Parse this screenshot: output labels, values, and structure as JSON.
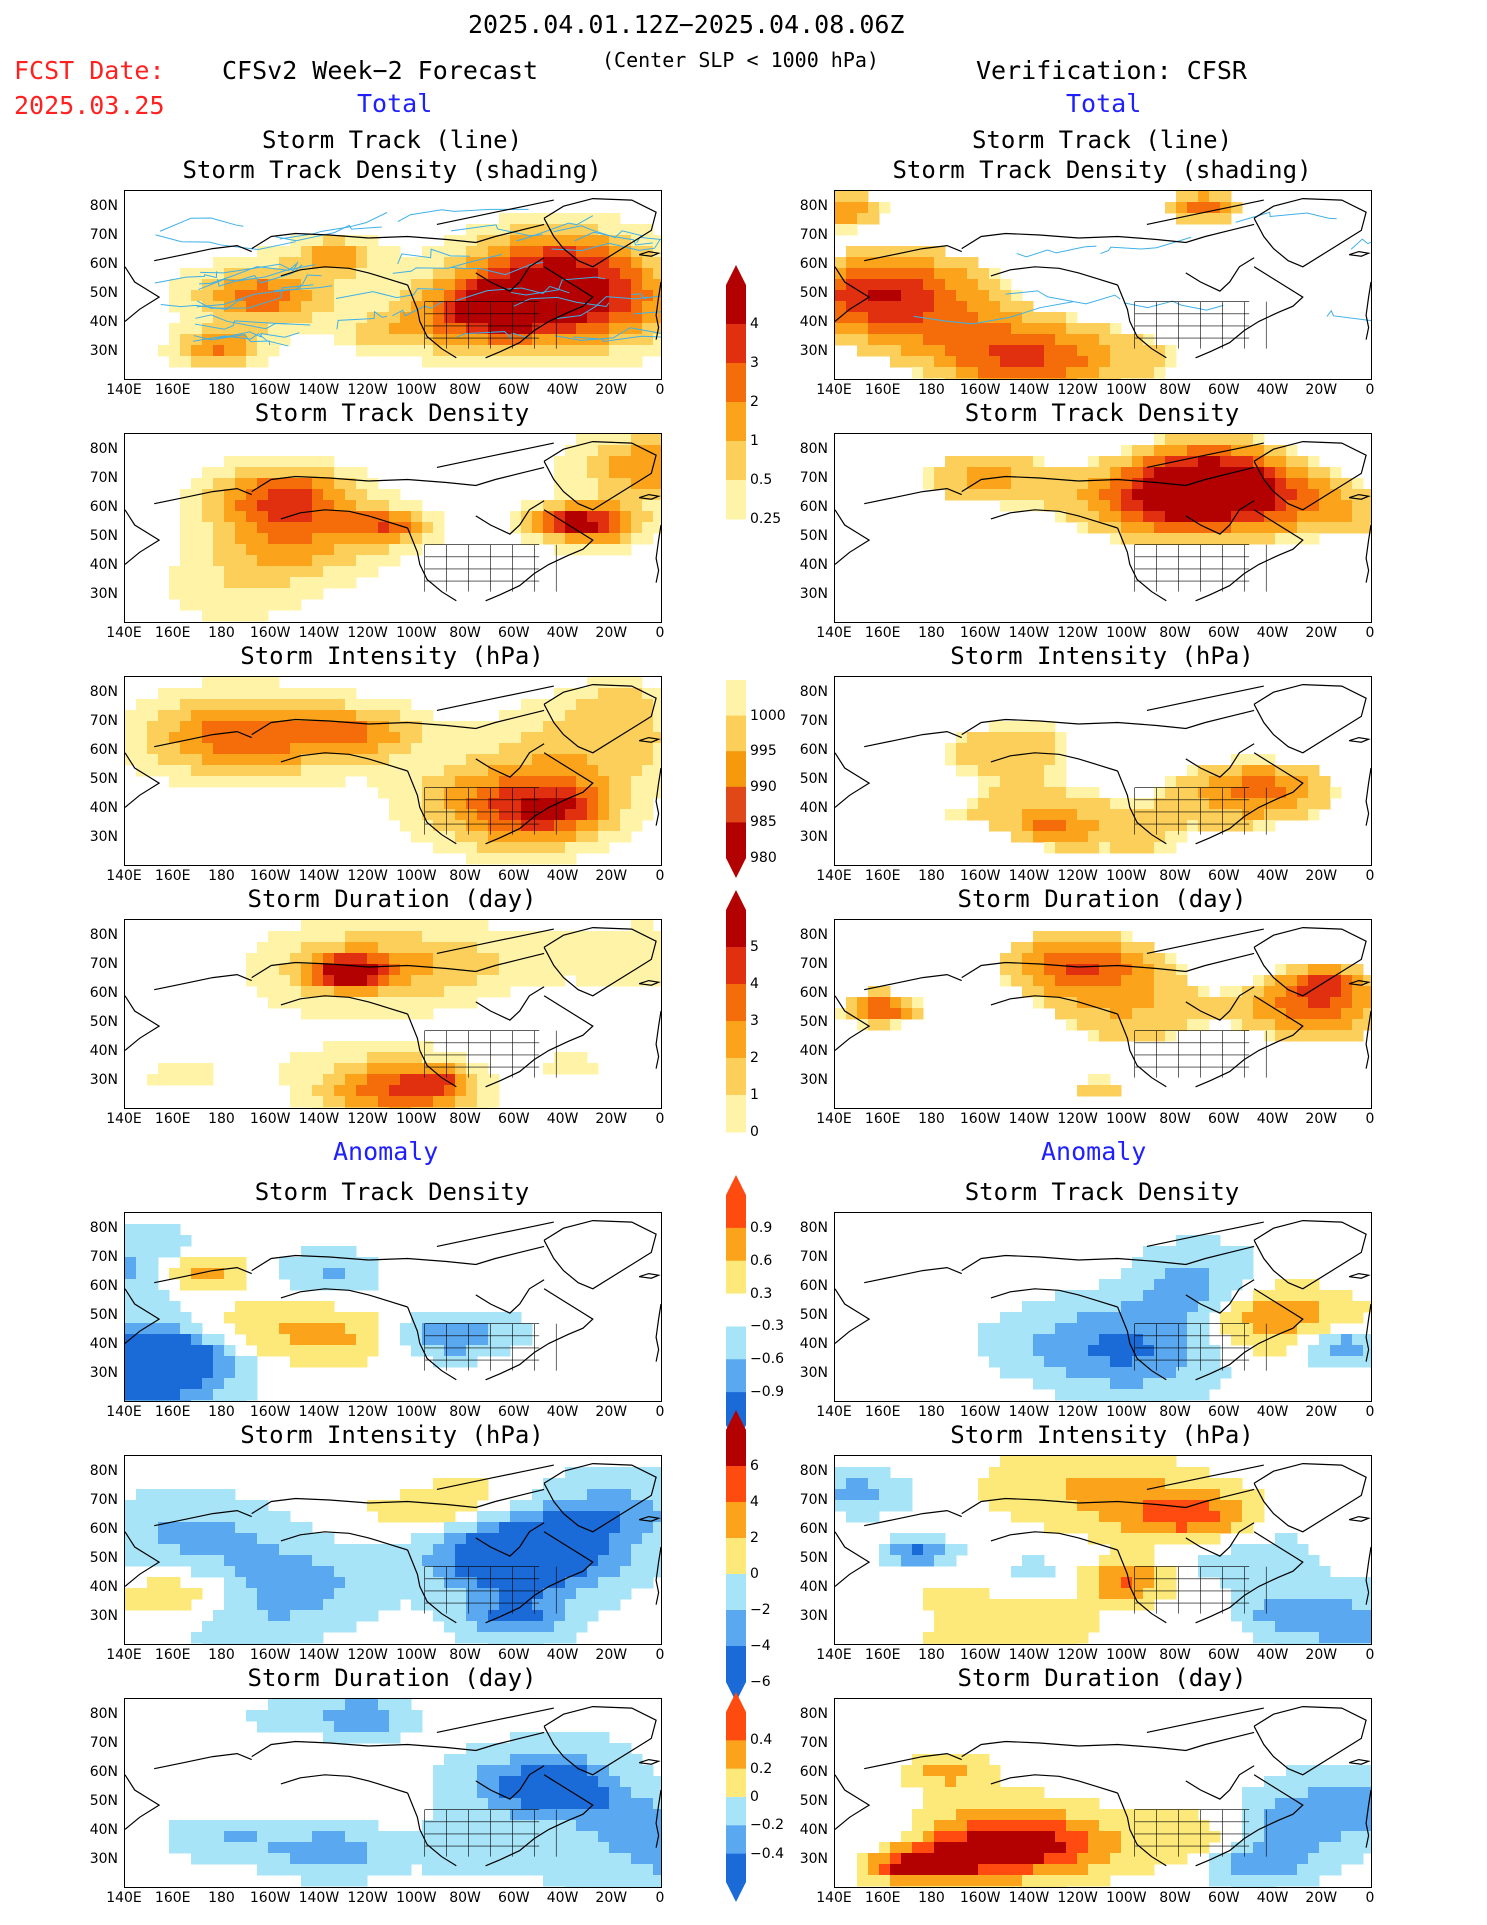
{
  "header": {
    "period": "2025.04.01.12Z−2025.04.08.06Z",
    "criterion": "(Center SLP < 1000 hPa)",
    "fcst_date_label": "FCST Date:",
    "fcst_date_value": "2025.03.25",
    "left_title": "CFSv2 Week−2 Forecast",
    "right_title": "Verification: CFSR",
    "total_label": "Total",
    "anomaly_label": "Anomaly"
  },
  "panel_titles": {
    "track_line": "Storm Track (line)",
    "track_density_shading": "Storm Track Density (shading)",
    "track_density": "Storm Track Density",
    "intensity": "Storm Intensity (hPa)",
    "duration": "Storm Duration (day)"
  },
  "axes": {
    "lat_ticks": [
      "80N",
      "70N",
      "60N",
      "50N",
      "40N",
      "30N"
    ],
    "lon_ticks": [
      "140E",
      "160E",
      "180",
      "160W",
      "140W",
      "120W",
      "100W",
      "80W",
      "60W",
      "40W",
      "20W",
      "0"
    ]
  },
  "colorbars": {
    "density": {
      "labels": [
        "4",
        "3",
        "2",
        "1",
        "0.5",
        "0.25"
      ],
      "colors": [
        "#b30000",
        "#e03010",
        "#f46d0a",
        "#fba31a",
        "#fccf5a",
        "#fff3a8"
      ]
    },
    "intensity": {
      "labels": [
        "1000",
        "995",
        "990",
        "985",
        "980"
      ],
      "colors": [
        "#fff3a8",
        "#fccf5a",
        "#f49a0c",
        "#e04818",
        "#b30000"
      ]
    },
    "duration": {
      "labels": [
        "5",
        "4",
        "3",
        "2",
        "1",
        "0"
      ],
      "colors": [
        "#b30000",
        "#e03010",
        "#f46d0a",
        "#fba31a",
        "#fccf5a",
        "#fff3a8"
      ]
    },
    "anom_density": {
      "labels": [
        "0.9",
        "0.6",
        "0.3",
        "−0.3",
        "−0.6",
        "−0.9"
      ],
      "colors": [
        "#ff4a10",
        "#fba31a",
        "#fde87a",
        "#ffffff",
        "#a8e4f8",
        "#5aa8f0",
        "#1a6ad8"
      ]
    },
    "anom_intensity": {
      "labels": [
        "6",
        "4",
        "2",
        "0",
        "−2",
        "−4",
        "−6"
      ],
      "colors": [
        "#b30000",
        "#ff4a10",
        "#fba31a",
        "#fde87a",
        "#a8e4f8",
        "#5aa8f0",
        "#1a6ad8"
      ]
    },
    "anom_duration": {
      "labels": [
        "0.4",
        "0.2",
        "0",
        "−0.2",
        "−0.4"
      ],
      "colors": [
        "#ff4a10",
        "#fba31a",
        "#fde87a",
        "#a8e4f8",
        "#5aa8f0",
        "#1a6ad8"
      ]
    }
  },
  "colors": {
    "land_line": "#000000",
    "track_line": "#3fb0e8"
  }
}
